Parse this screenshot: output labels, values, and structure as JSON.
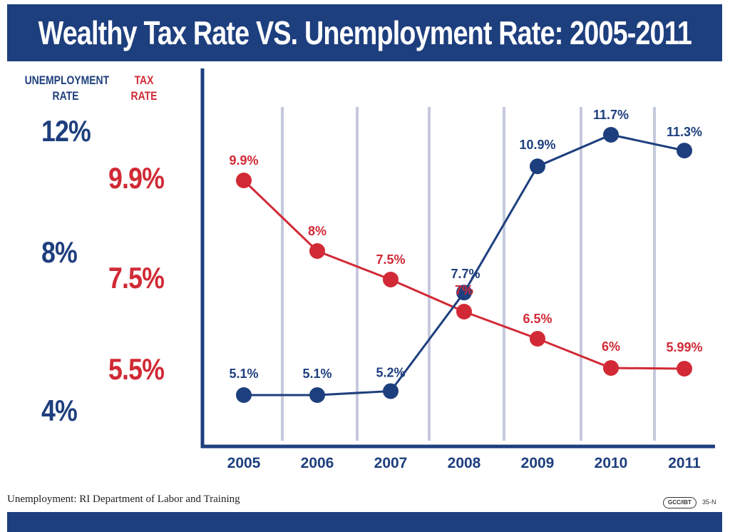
{
  "header": {
    "title": "Wealthy Tax Rate VS. Unemployment Rate: 2005-2011"
  },
  "left_axis": {
    "unemployment_label_line1": "UNEMPLOYMENT",
    "unemployment_label_line2": "RATE",
    "tax_label_line1": "TAX",
    "tax_label_line2": "RATE",
    "unemployment_ticks": [
      "12%",
      "8%",
      "4%"
    ],
    "tax_ticks": [
      "9.9%",
      "7.5%",
      "5.5%"
    ]
  },
  "footer": {
    "source": "Unemployment: RI Department of Labor and Training",
    "logo_text": "GCC/IBT",
    "logo_code": "35-N"
  },
  "colors": {
    "navy": "#1e3f7e",
    "red": "#d12a36",
    "grid": "#c5c9dc"
  },
  "chart_data": {
    "type": "line",
    "title": "Wealthy Tax Rate VS. Unemployment Rate: 2005-2011",
    "categories": [
      "2005",
      "2006",
      "2007",
      "2008",
      "2009",
      "2010",
      "2011"
    ],
    "series": [
      {
        "name": "Unemployment Rate",
        "color": "#1e3f7e",
        "values": [
          5.1,
          5.1,
          5.2,
          7.7,
          10.9,
          11.7,
          11.3
        ],
        "labels": [
          "5.1%",
          "5.1%",
          "5.2%",
          "7.7%",
          "10.9%",
          "11.7%",
          "11.3%"
        ]
      },
      {
        "name": "Tax Rate",
        "color": "#d12a36",
        "values": [
          9.9,
          8,
          7.5,
          7,
          6.5,
          6,
          5.99
        ],
        "labels": [
          "9.9%",
          "8%",
          "7.5%",
          "7%",
          "6.5%",
          "6%",
          "5.99%"
        ]
      }
    ],
    "grid": "vertical"
  }
}
